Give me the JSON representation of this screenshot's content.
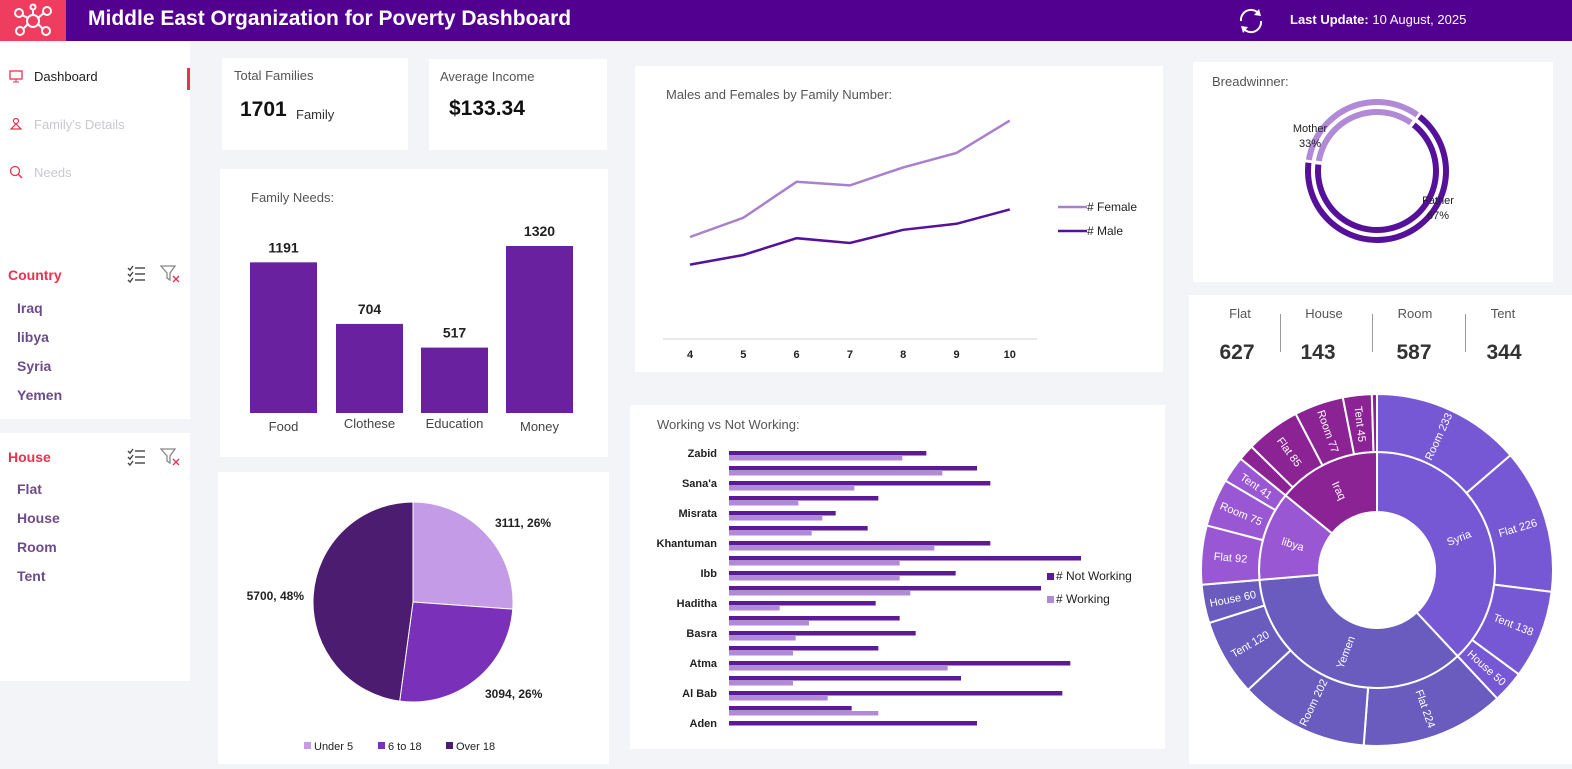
{
  "header": {
    "title": "Middle East Organization for Poverty Dashboard",
    "last_update_label": "Last Update:",
    "last_update_value": "10 August, 2025"
  },
  "sidebar": {
    "nav": [
      {
        "label": "Dashboard",
        "icon": "monitor-icon"
      },
      {
        "label": "Family's Details",
        "icon": "family-icon"
      },
      {
        "label": "Needs",
        "icon": "search-people-icon"
      }
    ],
    "filters": [
      {
        "title": "Country",
        "items": [
          "Iraq",
          "libya",
          "Syria",
          "Yemen"
        ]
      },
      {
        "title": "House",
        "items": [
          "Flat",
          "House",
          "Room",
          "Tent"
        ]
      }
    ]
  },
  "kpis": {
    "total_families_label": "Total Families",
    "total_families_value": "1701",
    "total_families_unit": "Family",
    "average_income_label": "Average Income",
    "average_income_value": "$133.34"
  },
  "housing": [
    {
      "label": "Flat",
      "value": "627"
    },
    {
      "label": "House",
      "value": "143"
    },
    {
      "label": "Room",
      "value": "587"
    },
    {
      "label": "Tent",
      "value": "344"
    }
  ],
  "colors": {
    "header": "#52008f",
    "accent": "#ee3d5e",
    "bar": "#6a21a0",
    "female": "#a97fd0",
    "male": "#55119a",
    "not_working": "#5c1a96",
    "working": "#b08ad6",
    "pie_under5": "#c49be6",
    "pie_6to18": "#7a30b8",
    "pie_over18": "#4c1c71",
    "sun_syria": "#7758d4",
    "sun_yemen": "#6a5bbf",
    "sun_libya": "#9a57d3",
    "sun_iraq": "#8b2395"
  },
  "chart_data": [
    {
      "type": "bar",
      "title": "Family Needs:",
      "categories": [
        "Food",
        "Clothese",
        "Education",
        "Money"
      ],
      "values": [
        1191,
        704,
        517,
        1320
      ]
    },
    {
      "type": "line",
      "title": "Males and Females by Family Number:",
      "x": [
        4,
        5,
        6,
        7,
        8,
        9,
        10
      ],
      "series": [
        {
          "name": "# Female",
          "values": [
            85,
            101,
            131,
            128,
            143,
            155,
            182
          ]
        },
        {
          "name": "# Male",
          "values": [
            62,
            70,
            84,
            80,
            91,
            96,
            108
          ]
        }
      ],
      "ylim": [
        0,
        200
      ]
    },
    {
      "type": "bar",
      "orientation": "horizontal",
      "title": "Working vs Not Working:",
      "categories": [
        "Zabid",
        "Sana'a",
        "Misrata",
        "Khantuman",
        "Ibb",
        "Haditha",
        "Basra",
        "Atma",
        "Al Bab",
        "Aden"
      ],
      "series": [
        {
          "name": "# Not Working",
          "values": [
            [
              74,
              93
            ],
            [
              98,
              56
            ],
            [
              40,
              52
            ],
            [
              98,
              132
            ],
            [
              85,
              117
            ],
            [
              55,
              64
            ],
            [
              70,
              56
            ],
            [
              128,
              87
            ],
            [
              125,
              46
            ],
            [
              93,
              0
            ]
          ]
        },
        {
          "name": "# Working",
          "values": [
            [
              65,
              80
            ],
            [
              47,
              26
            ],
            [
              35,
              31
            ],
            [
              77,
              64
            ],
            [
              64,
              68
            ],
            [
              19,
              30
            ],
            [
              25,
              24
            ],
            [
              82,
              24
            ],
            [
              37,
              56
            ],
            [
              0,
              0
            ]
          ]
        }
      ],
      "xlim": [
        0,
        150
      ]
    },
    {
      "type": "pie",
      "labels": [
        "Under 5",
        "6 to 18",
        "Over 18"
      ],
      "values": [
        3111,
        3094,
        5700
      ],
      "data_labels": [
        "3111, 26%",
        "3094, 26%",
        "5700, 48%"
      ],
      "legend": "bottom"
    },
    {
      "type": "pie",
      "subtype": "doughnut",
      "title": "Breadwinner:",
      "labels": [
        "Mother",
        "Father"
      ],
      "values": [
        33,
        67
      ],
      "data_labels": [
        "33%",
        "67%"
      ]
    },
    {
      "type": "sunburst",
      "inner": [
        {
          "name": "Syria",
          "value": 647
        },
        {
          "name": "Yemen",
          "value": 606
        },
        {
          "name": "libya",
          "value": 208
        },
        {
          "name": "Iraq",
          "value": 240
        }
      ],
      "outer": [
        {
          "parent": "Syria",
          "label": "Room 233",
          "value": 233
        },
        {
          "parent": "Syria",
          "label": "Flat 226",
          "value": 226
        },
        {
          "parent": "Syria",
          "label": "Tent 138",
          "value": 138
        },
        {
          "parent": "Syria",
          "label": "House 50",
          "value": 50
        },
        {
          "parent": "Yemen",
          "label": "Flat 224",
          "value": 224
        },
        {
          "parent": "Yemen",
          "label": "Room 202",
          "value": 202
        },
        {
          "parent": "Yemen",
          "label": "Tent 120",
          "value": 120
        },
        {
          "parent": "Yemen",
          "label": "House 60",
          "value": 60
        },
        {
          "parent": "libya",
          "label": "Flat 92",
          "value": 92
        },
        {
          "parent": "libya",
          "label": "Room 75",
          "value": 75
        },
        {
          "parent": "libya",
          "label": "Tent 41",
          "value": 41
        },
        {
          "parent": "Iraq",
          "label": "",
          "value": 25
        },
        {
          "parent": "Iraq",
          "label": "Flat 85",
          "value": 85
        },
        {
          "parent": "Iraq",
          "label": "Room 77",
          "value": 77
        },
        {
          "parent": "Iraq",
          "label": "Tent 45",
          "value": 45
        },
        {
          "parent": "Iraq",
          "label": "",
          "value": 8
        }
      ]
    }
  ]
}
